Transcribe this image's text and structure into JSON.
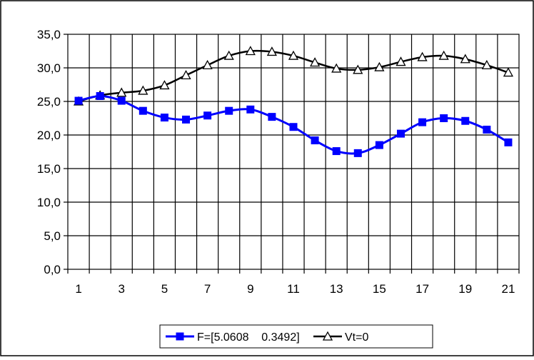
{
  "chart_data": {
    "type": "line",
    "x": [
      1,
      2,
      3,
      4,
      5,
      6,
      7,
      8,
      9,
      10,
      11,
      12,
      13,
      14,
      15,
      16,
      17,
      18,
      19,
      20,
      21
    ],
    "x_tick_labels": [
      "1",
      "3",
      "5",
      "7",
      "9",
      "11",
      "13",
      "15",
      "17",
      "19",
      "21"
    ],
    "y_tick_labels": [
      "0,0",
      "5,0",
      "10,0",
      "15,0",
      "20,0",
      "25,0",
      "30,0",
      "35,0"
    ],
    "ylim": [
      0,
      35
    ],
    "y_tick_step": 5,
    "grid": true,
    "legend_position": "bottom",
    "series": [
      {
        "name": "F=[5.0608    0.3492]",
        "marker": "square",
        "color": "#0000ff",
        "values": [
          25.1,
          25.8,
          25.1,
          23.6,
          22.6,
          22.3,
          22.9,
          23.6,
          23.8,
          22.7,
          21.2,
          19.2,
          17.6,
          17.3,
          18.5,
          20.2,
          21.9,
          22.5,
          22.1,
          20.8,
          18.9
        ]
      },
      {
        "name": "Vt=0",
        "marker": "triangle",
        "color": "#000000",
        "values": [
          25.0,
          25.9,
          26.3,
          26.6,
          27.4,
          28.9,
          30.4,
          31.8,
          32.5,
          32.4,
          31.8,
          30.8,
          29.9,
          29.7,
          30.1,
          30.9,
          31.6,
          31.8,
          31.3,
          30.4,
          29.3
        ]
      }
    ]
  }
}
